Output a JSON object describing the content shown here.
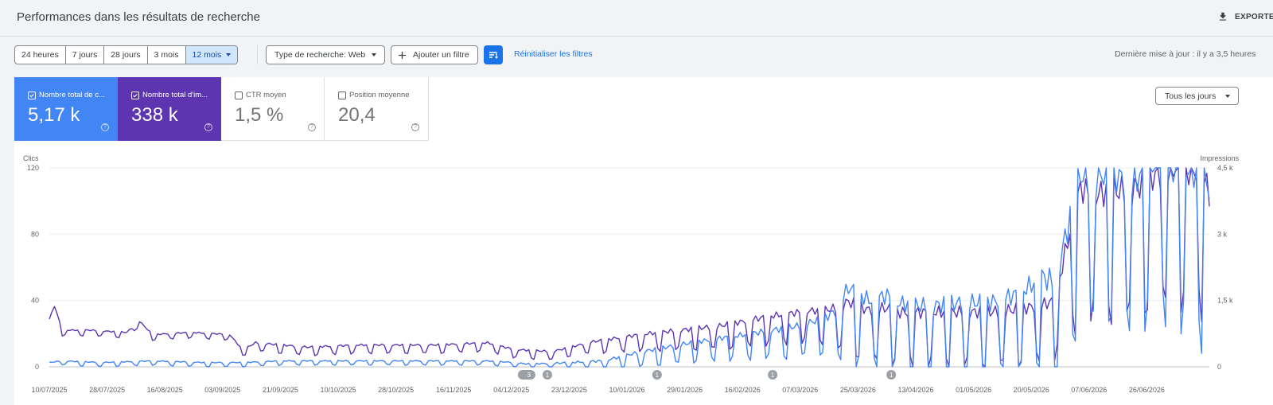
{
  "header": {
    "title": "Performances dans les résultats de recherche",
    "export_label": "EXPORTER"
  },
  "filters": {
    "ranges": [
      "24 heures",
      "7 jours",
      "28 jours",
      "3 mois",
      "12 mois"
    ],
    "selected_range": "12 mois",
    "search_type": "Type de recherche: Web",
    "add_filter": "Ajouter un filtre",
    "reset": "Réinitialiser les filtres",
    "last_update": "Dernière mise à jour : il y a 3,5 heures"
  },
  "metrics": {
    "clicks": {
      "label": "Nombre total de c...",
      "value": "5,17 k",
      "checked": true,
      "color": "#4285f4"
    },
    "impressions": {
      "label": "Nombre total d'im...",
      "value": "338 k",
      "checked": true,
      "color": "#5e35b1"
    },
    "ctr": {
      "label": "CTR moyen",
      "value": "1,5 %",
      "checked": false
    },
    "position": {
      "label": "Position moyenne",
      "value": "20,4",
      "checked": false
    }
  },
  "days_select": "Tous les jours",
  "chart_data": {
    "type": "line",
    "left_axis": {
      "label": "Clics",
      "ticks": [
        "0",
        "40",
        "80",
        "120"
      ],
      "max": 120
    },
    "right_axis": {
      "label": "Impressions",
      "ticks": [
        "0",
        "1,5 k",
        "3 k",
        "4,5 k"
      ],
      "max": 4500
    },
    "x_tick_labels": [
      "10/07/2025",
      "28/07/2025",
      "16/08/2025",
      "03/09/2025",
      "21/09/2025",
      "10/10/2025",
      "28/10/2025",
      "16/11/2025",
      "04/12/2025",
      "23/12/2025",
      "10/01/2026",
      "29/01/2026",
      "16/02/2026",
      "07/03/2026",
      "25/03/2026",
      "13/04/2026",
      "01/05/2026",
      "20/05/2026",
      "07/06/2026",
      "26/06/2026"
    ],
    "grid": true,
    "annotations": [
      {
        "date": "18/12/2025",
        "label": "3"
      },
      {
        "date": "25/12/2025",
        "label": "1"
      },
      {
        "date": "31/01/2026",
        "label": "1"
      },
      {
        "date": "11/03/2026",
        "label": "1"
      },
      {
        "date": "20/04/2026",
        "label": "1"
      }
    ],
    "series": [
      {
        "name": "Nombre total de c...",
        "axis": "left",
        "color": "#4285f4",
        "keypoints": [
          [
            0,
            2
          ],
          [
            5,
            3
          ],
          [
            20,
            2
          ],
          [
            40,
            3
          ],
          [
            60,
            2
          ],
          [
            75,
            2
          ],
          [
            90,
            3
          ],
          [
            110,
            3
          ],
          [
            130,
            3
          ],
          [
            150,
            3
          ],
          [
            170,
            3
          ],
          [
            180,
            2
          ],
          [
            185,
            1
          ],
          [
            195,
            1
          ],
          [
            215,
            2
          ],
          [
            230,
            7
          ],
          [
            250,
            12
          ],
          [
            270,
            16
          ],
          [
            290,
            20
          ],
          [
            305,
            26
          ],
          [
            310,
            38
          ],
          [
            318,
            30
          ],
          [
            325,
            33
          ],
          [
            330,
            28
          ],
          [
            340,
            26
          ],
          [
            355,
            28
          ],
          [
            365,
            28
          ],
          [
            375,
            32
          ],
          [
            385,
            40
          ],
          [
            390,
            34
          ],
          [
            400,
            96
          ],
          [
            405,
            90
          ],
          [
            410,
            98
          ],
          [
            420,
            88
          ],
          [
            428,
            105
          ],
          [
            436,
            100
          ],
          [
            445,
            95
          ],
          [
            450,
            85
          ]
        ],
        "amplitude": [
          [
            0,
            1.2
          ],
          [
            180,
            1.2
          ],
          [
            210,
            3
          ],
          [
            240,
            5
          ],
          [
            270,
            7
          ],
          [
            300,
            10
          ],
          [
            310,
            20
          ],
          [
            370,
            22
          ],
          [
            380,
            25
          ],
          [
            398,
            40
          ],
          [
            450,
            48
          ]
        ]
      },
      {
        "name": "Nombre total d'im...",
        "axis": "right",
        "color": "#5e35b1",
        "keypoints": [
          [
            0,
            1050
          ],
          [
            2,
            1350
          ],
          [
            5,
            800
          ],
          [
            15,
            800
          ],
          [
            30,
            750
          ],
          [
            35,
            1000
          ],
          [
            40,
            700
          ],
          [
            55,
            750
          ],
          [
            70,
            700
          ],
          [
            75,
            350
          ],
          [
            80,
            500
          ],
          [
            100,
            400
          ],
          [
            120,
            450
          ],
          [
            140,
            450
          ],
          [
            150,
            450
          ],
          [
            170,
            500
          ],
          [
            180,
            350
          ],
          [
            195,
            300
          ],
          [
            210,
            500
          ],
          [
            230,
            650
          ],
          [
            260,
            800
          ],
          [
            280,
            1000
          ],
          [
            295,
            1100
          ],
          [
            305,
            1100
          ],
          [
            310,
            1200
          ],
          [
            318,
            1000
          ],
          [
            325,
            1050
          ],
          [
            330,
            950
          ],
          [
            340,
            950
          ],
          [
            355,
            950
          ],
          [
            365,
            950
          ],
          [
            375,
            1000
          ],
          [
            385,
            1100
          ],
          [
            390,
            1200
          ],
          [
            400,
            3400
          ],
          [
            405,
            3200
          ],
          [
            410,
            3300
          ],
          [
            420,
            3300
          ],
          [
            428,
            3600
          ],
          [
            436,
            3800
          ],
          [
            445,
            3700
          ],
          [
            450,
            3250
          ]
        ],
        "amplitude": [
          [
            0,
            60
          ],
          [
            75,
            60
          ],
          [
            80,
            90
          ],
          [
            200,
            90
          ],
          [
            220,
            150
          ],
          [
            260,
            250
          ],
          [
            300,
            350
          ],
          [
            310,
            550
          ],
          [
            390,
            600
          ],
          [
            398,
            1300
          ],
          [
            450,
            1500
          ]
        ]
      }
    ]
  }
}
